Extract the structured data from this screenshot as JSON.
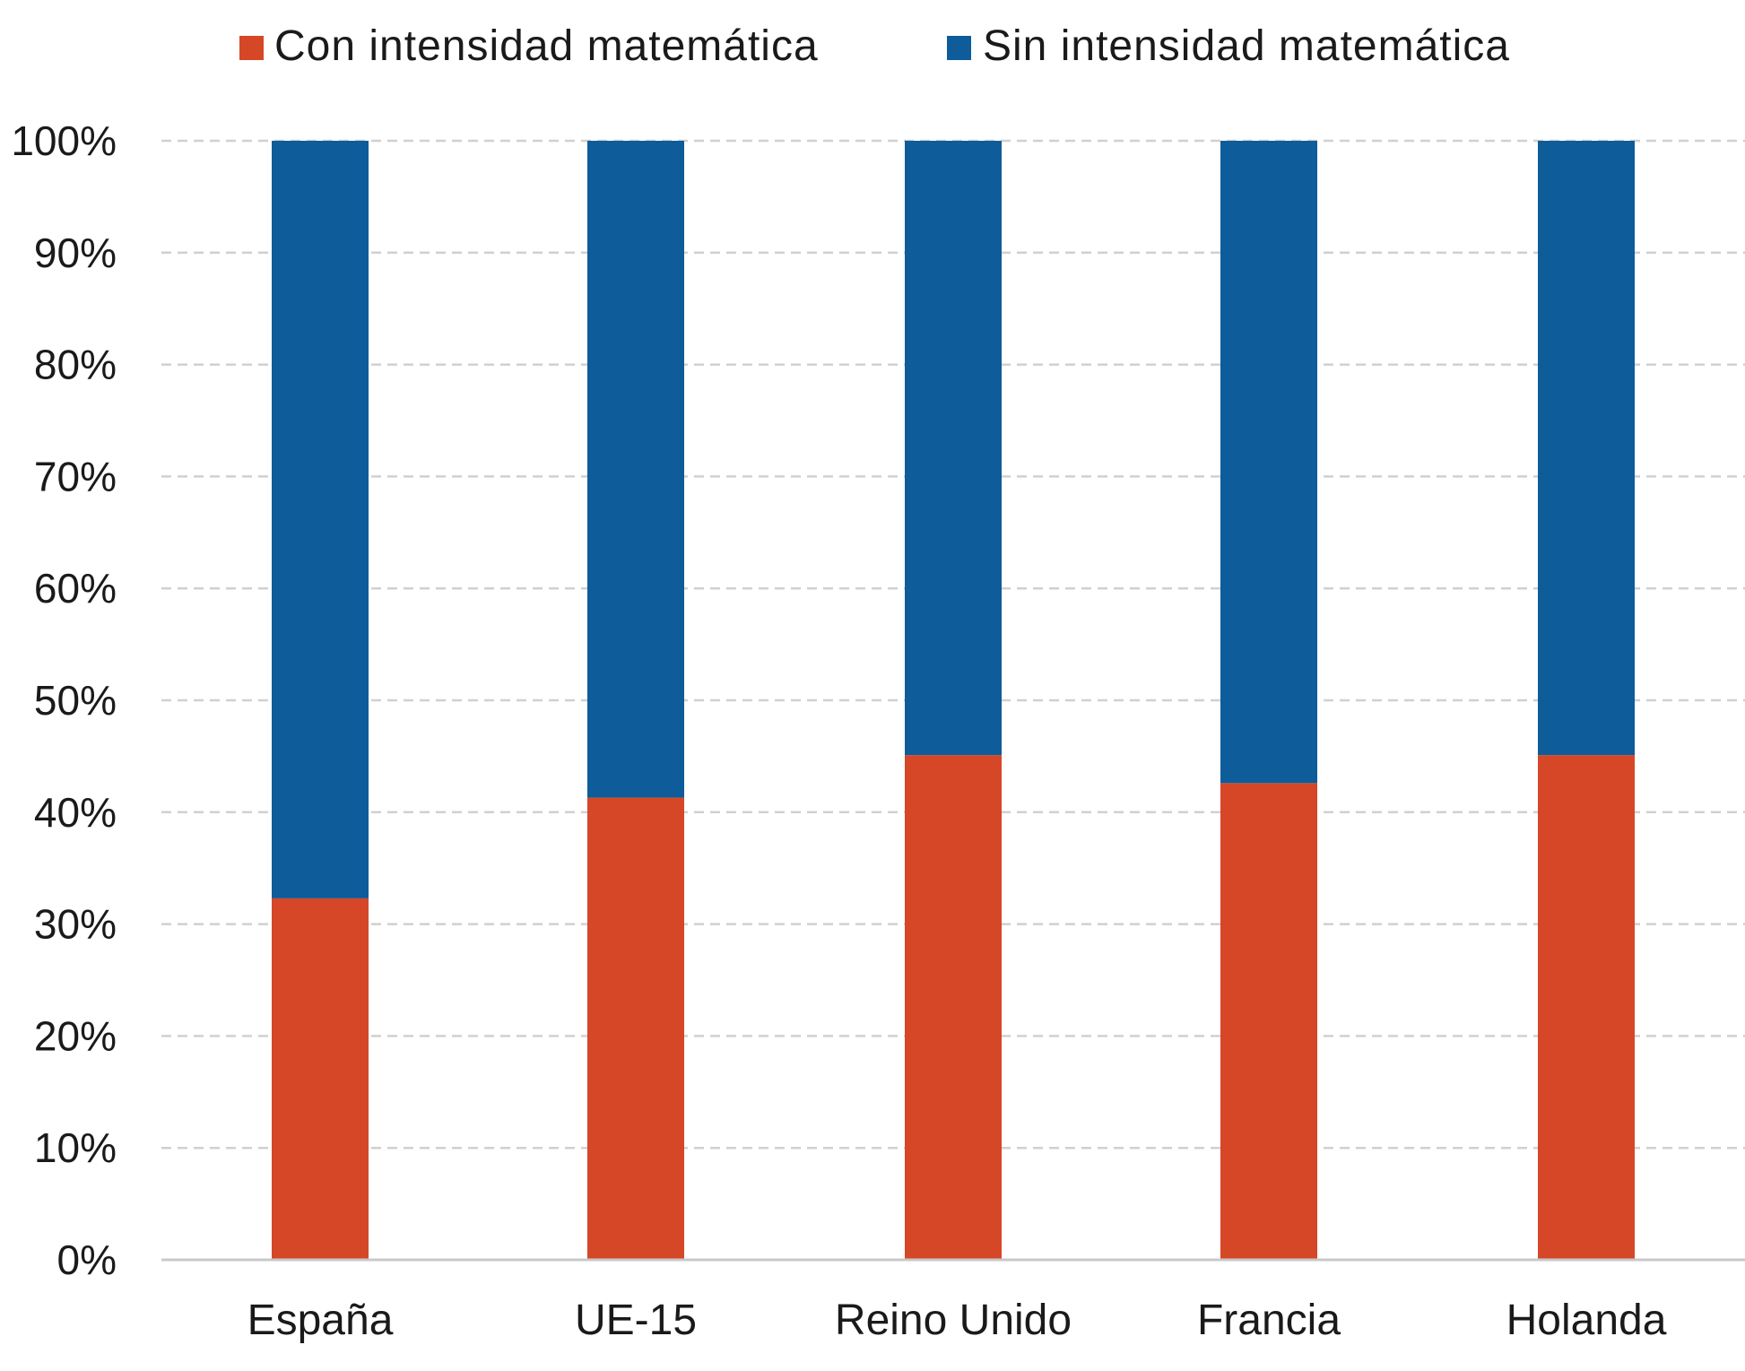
{
  "chart_data": {
    "type": "bar",
    "stacked": true,
    "percent": true,
    "categories": [
      "España",
      "UE-15",
      "Reino Unido",
      "Francia",
      "Holanda"
    ],
    "series": [
      {
        "name": "Con intensidad matemática",
        "color": "#d64727",
        "values": [
          32.3,
          41.3,
          45.1,
          42.6,
          45.1
        ]
      },
      {
        "name": "Sin intensidad matemática",
        "color": "#0e5c9a",
        "values": [
          67.7,
          58.7,
          54.9,
          57.4,
          54.9
        ]
      }
    ],
    "yticks": [
      "0%",
      "10%",
      "20%",
      "30%",
      "40%",
      "50%",
      "60%",
      "70%",
      "80%",
      "90%",
      "100%"
    ],
    "ylim": [
      0,
      100
    ],
    "grid": true,
    "grid_style": "dashed",
    "legend_position": "top",
    "title": "",
    "xlabel": "",
    "ylabel": ""
  }
}
